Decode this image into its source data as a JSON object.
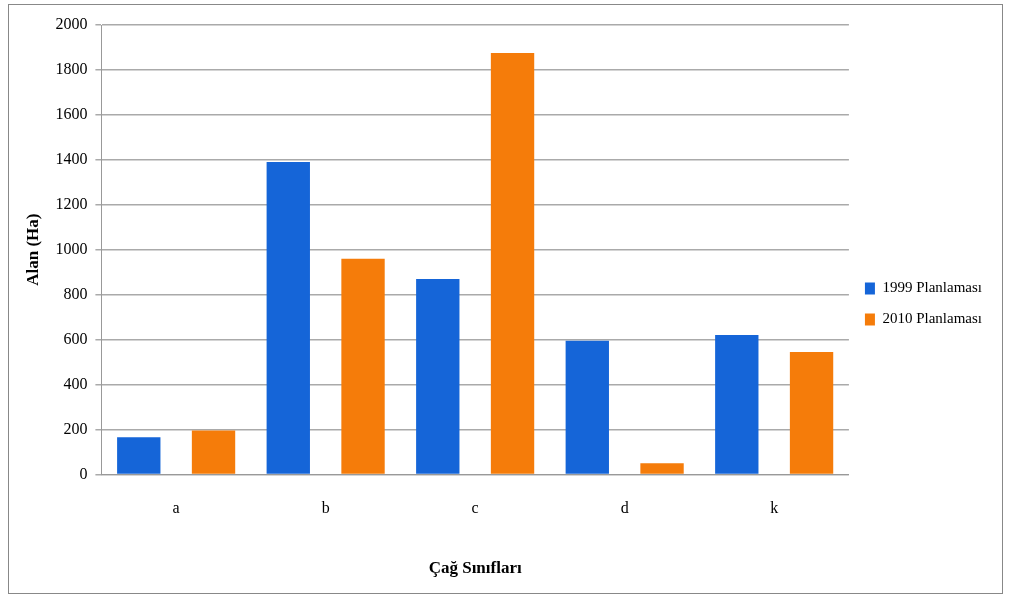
{
  "chart_data": {
    "type": "bar",
    "xlabel": "Çağ Sınıfları",
    "ylabel": "Alan (Ha)",
    "categories": [
      "a",
      "b",
      "c",
      "d",
      "k"
    ],
    "series": [
      {
        "name": "1999 Planlaması",
        "color": "#1565d8",
        "values": [
          165,
          1390,
          870,
          595,
          620
        ]
      },
      {
        "name": "2010 Planlaması",
        "color": "#f57c0a",
        "values": [
          195,
          960,
          1875,
          50,
          545
        ]
      }
    ],
    "ylim": [
      0,
      2000
    ],
    "yticks": [
      0,
      200,
      400,
      600,
      800,
      1000,
      1200,
      1400,
      1600,
      1800,
      2000
    ],
    "grid": "y",
    "legend": "right"
  }
}
